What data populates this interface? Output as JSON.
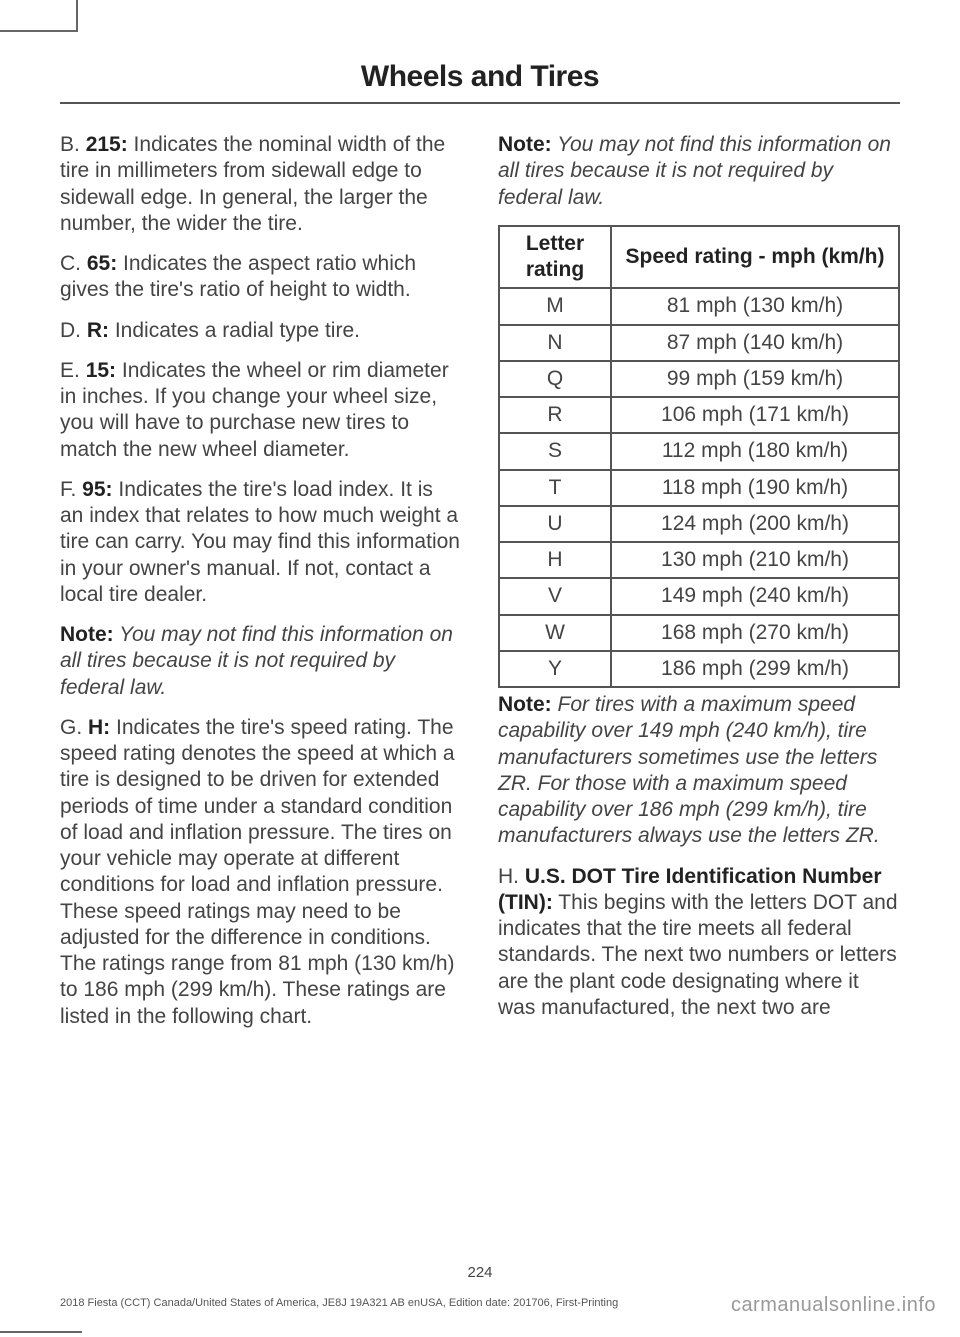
{
  "title": "Wheels and Tires",
  "page_number": "224",
  "footer_left": "2018 Fiesta (CCT) Canada/United States of America, JE8J 19A321 AB enUSA, Edition date: 201706, First-Printing",
  "footer_right": "carmanualsonline.info",
  "left": {
    "B_label": "B. ",
    "B_bold": "215:",
    "B_text": " Indicates the nominal width of the tire in millimeters from sidewall edge to sidewall edge. In general, the larger the number, the wider the tire.",
    "C_label": "C. ",
    "C_bold": "65:",
    "C_text": " Indicates the aspect ratio which gives the tire's ratio of height to width.",
    "D_label": "D. ",
    "D_bold": "R:",
    "D_text": " Indicates a radial type tire.",
    "E_label": "E. ",
    "E_bold": "15:",
    "E_text": " Indicates the wheel or rim diameter in inches. If you change your wheel size, you will have to purchase new tires to match the new wheel diameter.",
    "F_label": "F. ",
    "F_bold": "95:",
    "F_text": " Indicates the tire's load index. It is an index that relates to how much weight a tire can carry. You may find this information in your owner's manual. If not, contact a local tire dealer.",
    "note1_bold": "Note:",
    "note1_text": " You may not find this information on all tires because it is not required by federal law.",
    "G_label": "G. ",
    "G_bold": "H:",
    "G_text": " Indicates the tire's speed rating. The speed rating denotes the speed at which a tire is designed to be driven for extended periods of time under a standard condition of load and inflation pressure. The tires on your vehicle may operate at different conditions for load and inflation pressure. These speed ratings may need to be adjusted for the difference in conditions. The ratings range from 81 mph (130 km/h) to 186 mph (299 km/h). These ratings are listed in the following chart."
  },
  "right": {
    "note2_bold": "Note:",
    "note2_text": " You may not find this information on all tires because it is not required by federal law.",
    "table_h1": "Letter rating",
    "table_h2": "Speed rating - mph (km/h)",
    "rows": [
      {
        "l": "M",
        "s": "81 mph (130 km/h)"
      },
      {
        "l": "N",
        "s": "87 mph (140 km/h)"
      },
      {
        "l": "Q",
        "s": "99 mph (159 km/h)"
      },
      {
        "l": "R",
        "s": "106 mph (171 km/h)"
      },
      {
        "l": "S",
        "s": "112 mph (180 km/h)"
      },
      {
        "l": "T",
        "s": "118 mph (190 km/h)"
      },
      {
        "l": "U",
        "s": "124 mph (200 km/h)"
      },
      {
        "l": "H",
        "s": "130 mph (210 km/h)"
      },
      {
        "l": "V",
        "s": "149 mph (240 km/h)"
      },
      {
        "l": "W",
        "s": "168 mph (270 km/h)"
      },
      {
        "l": "Y",
        "s": "186 mph (299 km/h)"
      }
    ],
    "note3_bold": "Note:",
    "note3_text": " For tires with a maximum speed capability over 149 mph (240 km/h), tire manufacturers sometimes use the letters ZR. For those with a maximum speed capability over 186 mph (299 km/h), tire manufacturers always use the letters ZR.",
    "H_label": "H. ",
    "H_bold": "U.S. DOT Tire Identification Number (TIN):",
    "H_text": " This begins with the letters DOT and indicates that the tire meets all federal standards. The next two numbers or letters are the plant code designating where it was manufactured, the next two are"
  }
}
